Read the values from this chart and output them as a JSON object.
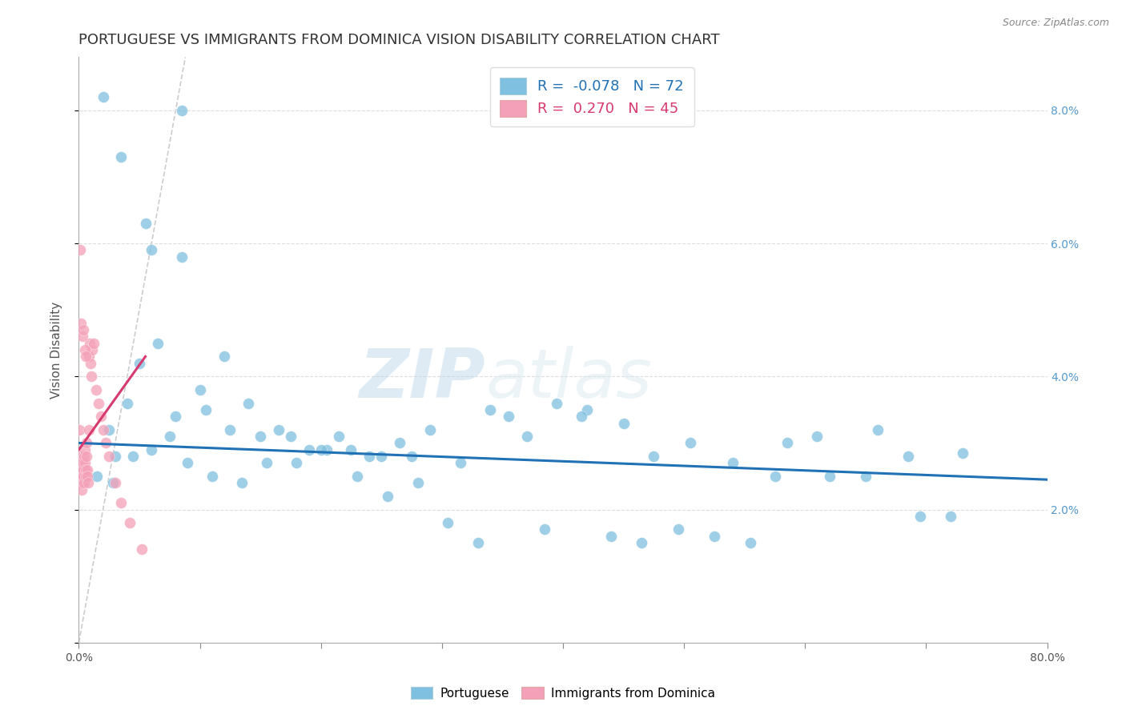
{
  "title": "PORTUGUESE VS IMMIGRANTS FROM DOMINICA VISION DISABILITY CORRELATION CHART",
  "source": "Source: ZipAtlas.com",
  "ylabel": "Vision Disability",
  "right_yticks": [
    2.0,
    4.0,
    6.0,
    8.0
  ],
  "xlim": [
    0.0,
    80.0
  ],
  "ylim": [
    0.0,
    8.8
  ],
  "legend_entries": [
    {
      "label": "Portuguese",
      "R": -0.078,
      "N": 72,
      "color": "#7fbfdf"
    },
    {
      "label": "Immigrants from Dominica",
      "R": 0.27,
      "N": 45,
      "color": "#f4a0b8"
    }
  ],
  "blue_scatter_x": [
    2.0,
    3.5,
    8.5,
    5.5,
    2.5,
    3.0,
    4.0,
    5.0,
    6.5,
    8.0,
    10.0,
    12.0,
    14.0,
    16.5,
    19.0,
    21.5,
    24.0,
    26.5,
    29.0,
    31.5,
    34.0,
    37.0,
    39.5,
    42.0,
    45.0,
    47.5,
    50.5,
    54.0,
    57.5,
    61.0,
    65.0,
    68.5,
    72.0,
    1.5,
    2.8,
    4.5,
    6.0,
    7.5,
    9.0,
    11.0,
    13.5,
    15.5,
    18.0,
    20.5,
    23.0,
    25.5,
    28.0,
    30.5,
    33.0,
    35.5,
    38.5,
    41.5,
    44.0,
    46.5,
    49.5,
    52.5,
    55.5,
    58.5,
    62.0,
    66.0,
    69.5,
    73.0,
    6.0,
    8.5,
    10.5,
    12.5,
    15.0,
    17.5,
    20.0,
    22.5,
    25.0,
    27.5
  ],
  "blue_scatter_y": [
    8.2,
    7.3,
    8.0,
    6.3,
    3.2,
    2.8,
    3.6,
    4.2,
    4.5,
    3.4,
    3.8,
    4.3,
    3.6,
    3.2,
    2.9,
    3.1,
    2.8,
    3.0,
    3.2,
    2.7,
    3.5,
    3.1,
    3.6,
    3.5,
    3.3,
    2.8,
    3.0,
    2.7,
    2.5,
    3.1,
    2.5,
    2.8,
    1.9,
    2.5,
    2.4,
    2.8,
    2.9,
    3.1,
    2.7,
    2.5,
    2.4,
    2.7,
    2.7,
    2.9,
    2.5,
    2.2,
    2.4,
    1.8,
    1.5,
    3.4,
    1.7,
    3.4,
    1.6,
    1.5,
    1.7,
    1.6,
    1.5,
    3.0,
    2.5,
    3.2,
    1.9,
    2.85,
    5.9,
    5.8,
    3.5,
    3.2,
    3.1,
    3.1,
    2.9,
    2.9,
    2.8,
    2.8
  ],
  "pink_scatter_x": [
    0.05,
    0.08,
    0.12,
    0.15,
    0.18,
    0.22,
    0.25,
    0.28,
    0.32,
    0.35,
    0.38,
    0.42,
    0.45,
    0.48,
    0.52,
    0.55,
    0.58,
    0.62,
    0.65,
    0.68,
    0.72,
    0.75,
    0.8,
    0.85,
    0.9,
    0.95,
    1.0,
    1.1,
    1.2,
    1.4,
    1.6,
    1.8,
    2.0,
    2.2,
    2.5,
    3.0,
    3.5,
    4.2,
    5.2,
    0.1,
    0.2,
    0.3,
    0.4,
    0.5,
    0.6
  ],
  "pink_scatter_y": [
    3.2,
    2.7,
    2.5,
    2.6,
    2.8,
    2.4,
    2.3,
    2.5,
    2.7,
    2.6,
    2.5,
    2.4,
    2.8,
    2.7,
    2.9,
    2.6,
    2.5,
    3.0,
    2.8,
    2.6,
    2.5,
    2.4,
    3.2,
    4.3,
    4.5,
    4.2,
    4.0,
    4.4,
    4.5,
    3.8,
    3.6,
    3.4,
    3.2,
    3.0,
    2.8,
    2.4,
    2.1,
    1.8,
    1.4,
    5.9,
    4.8,
    4.6,
    4.7,
    4.4,
    4.3
  ],
  "blue_trend": {
    "x_start": 0.0,
    "x_end": 80.0,
    "y_start": 3.0,
    "y_end": 2.45
  },
  "pink_trend": {
    "x_start": 0.0,
    "x_end": 5.5,
    "y_start": 2.9,
    "y_end": 4.3
  },
  "diag_line": {
    "x_start": 0.0,
    "x_end": 8.8,
    "y_start": 0.0,
    "y_end": 8.8
  },
  "blue_color": "#7fbfdf",
  "pink_color": "#f4a0b8",
  "blue_line_color": "#2171b5",
  "pink_line_color": "#d63a6e",
  "diag_color": "#c0c0c0",
  "background_color": "#ffffff",
  "grid_color": "#dddddd",
  "title_fontsize": 13,
  "axis_label_fontsize": 11,
  "tick_fontsize": 10,
  "watermark_color": "#c8dff0"
}
